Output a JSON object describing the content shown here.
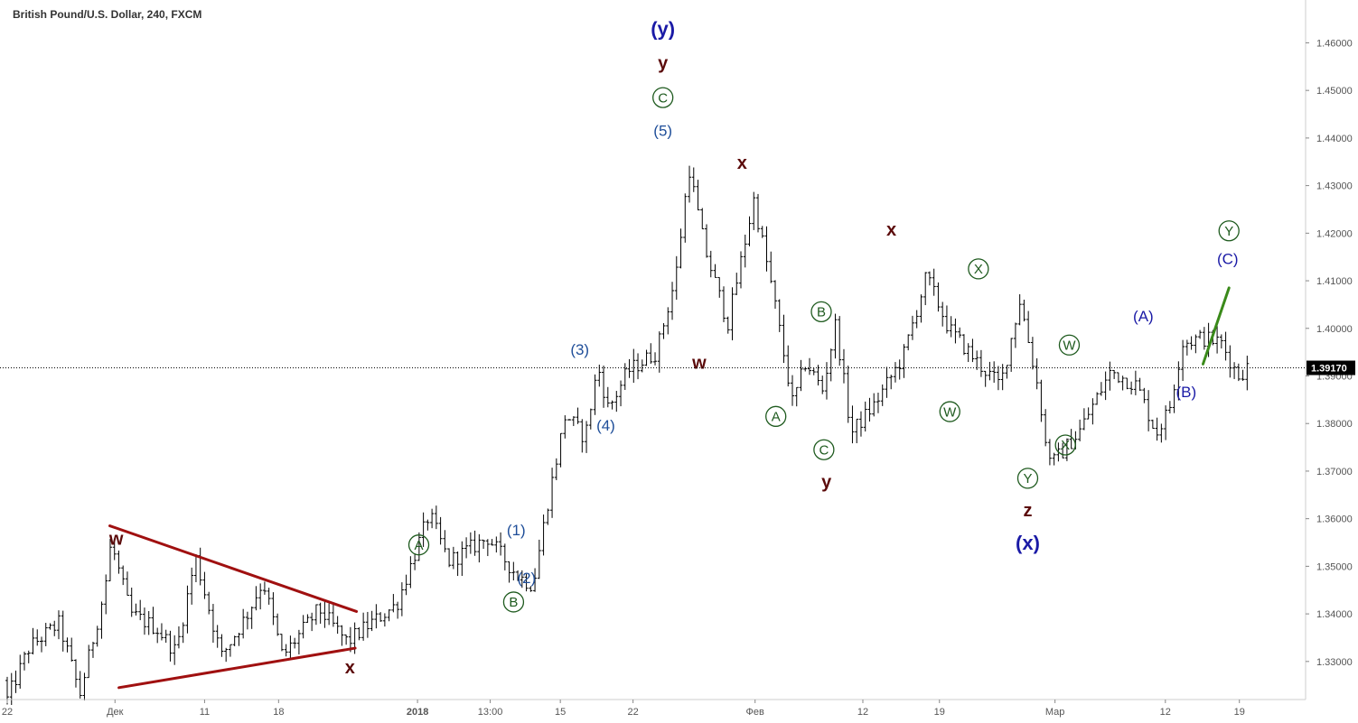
{
  "title": "British Pound/U.S. Dollar, 240, FXCM",
  "chart_data": {
    "type": "ohlc",
    "title": "British Pound/U.S. Dollar, 240, FXCM",
    "ylim": [
      1.322,
      1.469
    ],
    "y_ticks": [
      {
        "value": 1.33,
        "label": "1.33000"
      },
      {
        "value": 1.34,
        "label": "1.34000"
      },
      {
        "value": 1.35,
        "label": "1.35000"
      },
      {
        "value": 1.36,
        "label": "1.36000"
      },
      {
        "value": 1.37,
        "label": "1.37000"
      },
      {
        "value": 1.38,
        "label": "1.38000"
      },
      {
        "value": 1.39,
        "label": "1.39000"
      },
      {
        "value": 1.4,
        "label": "1.40000"
      },
      {
        "value": 1.41,
        "label": "1.41000"
      },
      {
        "value": 1.42,
        "label": "1.42000"
      },
      {
        "value": 1.43,
        "label": "1.43000"
      },
      {
        "value": 1.44,
        "label": "1.44000"
      },
      {
        "value": 1.45,
        "label": "1.45000"
      },
      {
        "value": 1.46,
        "label": "1.46000"
      }
    ],
    "x_ticks": [
      {
        "label": "22",
        "pos": 0
      },
      {
        "label": "Дек",
        "pos": 0.083
      },
      {
        "label": "11",
        "pos": 0.152
      },
      {
        "label": "18",
        "pos": 0.209
      },
      {
        "label": "2018",
        "pos": 0.316
      },
      {
        "label": "13:00",
        "pos": 0.372
      },
      {
        "label": "15",
        "pos": 0.426
      },
      {
        "label": "22",
        "pos": 0.482
      },
      {
        "label": "Фев",
        "pos": 0.576
      },
      {
        "label": "12",
        "pos": 0.659
      },
      {
        "label": "19",
        "pos": 0.718
      },
      {
        "label": "Мар",
        "pos": 0.807
      },
      {
        "label": "12",
        "pos": 0.892
      },
      {
        "label": "19",
        "pos": 0.949
      }
    ],
    "current_price": {
      "value": 1.3917,
      "label": "1.39170"
    },
    "price_anchors": [
      [
        0.0,
        1.322
      ],
      [
        0.017,
        1.333
      ],
      [
        0.04,
        1.338
      ],
      [
        0.056,
        1.323
      ],
      [
        0.075,
        1.345
      ],
      [
        0.08,
        1.355
      ],
      [
        0.095,
        1.34
      ],
      [
        0.115,
        1.337
      ],
      [
        0.13,
        1.332
      ],
      [
        0.145,
        1.352
      ],
      [
        0.165,
        1.331
      ],
      [
        0.185,
        1.34
      ],
      [
        0.197,
        1.347
      ],
      [
        0.212,
        1.331
      ],
      [
        0.24,
        1.341
      ],
      [
        0.262,
        1.334
      ],
      [
        0.275,
        1.337
      ],
      [
        0.3,
        1.342
      ],
      [
        0.325,
        1.361
      ],
      [
        0.34,
        1.351
      ],
      [
        0.37,
        1.356
      ],
      [
        0.393,
        1.348
      ],
      [
        0.405,
        1.346
      ],
      [
        0.416,
        1.363
      ],
      [
        0.43,
        1.382
      ],
      [
        0.445,
        1.377
      ],
      [
        0.455,
        1.392
      ],
      [
        0.463,
        1.383
      ],
      [
        0.478,
        1.391
      ],
      [
        0.5,
        1.395
      ],
      [
        0.515,
        1.411
      ],
      [
        0.525,
        1.434
      ],
      [
        0.537,
        1.417
      ],
      [
        0.555,
        1.401
      ],
      [
        0.575,
        1.427
      ],
      [
        0.59,
        1.407
      ],
      [
        0.605,
        1.384
      ],
      [
        0.615,
        1.393
      ],
      [
        0.628,
        1.387
      ],
      [
        0.638,
        1.401
      ],
      [
        0.65,
        1.378
      ],
      [
        0.668,
        1.384
      ],
      [
        0.69,
        1.394
      ],
      [
        0.708,
        1.411
      ],
      [
        0.725,
        1.4
      ],
      [
        0.75,
        1.392
      ],
      [
        0.765,
        1.388
      ],
      [
        0.78,
        1.406
      ],
      [
        0.795,
        1.386
      ],
      [
        0.8,
        1.375
      ],
      [
        0.806,
        1.372
      ],
      [
        0.825,
        1.378
      ],
      [
        0.85,
        1.391
      ],
      [
        0.87,
        1.388
      ],
      [
        0.885,
        1.378
      ],
      [
        0.895,
        1.383
      ],
      [
        0.905,
        1.397
      ],
      [
        0.92,
        1.398
      ],
      [
        0.935,
        1.397
      ],
      [
        0.948,
        1.39
      ],
      [
        0.955,
        1.3917
      ]
    ]
  },
  "wave_labels": [
    {
      "text": "(y)",
      "color": "#1a1aa6",
      "x": 0.505,
      "y": 1.4615,
      "size": 22,
      "bold": true
    },
    {
      "text": "y",
      "color": "#5b0a0a",
      "x": 0.505,
      "y": 1.4545,
      "size": 20,
      "bold": true
    },
    {
      "text": "C",
      "circled": true,
      "color": "#1e5a1e",
      "x": 0.505,
      "y": 1.4475,
      "size": 15
    },
    {
      "text": "(5)",
      "color": "#1f4e99",
      "x": 0.505,
      "y": 1.4405,
      "size": 17
    },
    {
      "text": "x",
      "color": "#5b0a0a",
      "x": 0.566,
      "y": 1.4335,
      "size": 20,
      "bold": true
    },
    {
      "text": "w",
      "color": "#5b0a0a",
      "x": 0.533,
      "y": 1.3915,
      "size": 20,
      "bold": true
    },
    {
      "text": "(3)",
      "color": "#1f4e99",
      "x": 0.441,
      "y": 1.3945,
      "size": 17
    },
    {
      "text": "(4)",
      "color": "#1f4e99",
      "x": 0.461,
      "y": 1.3785,
      "size": 17
    },
    {
      "text": "(1)",
      "color": "#1f4e99",
      "x": 0.392,
      "y": 1.3565,
      "size": 17
    },
    {
      "text": "(2)",
      "color": "#1f4e99",
      "x": 0.4,
      "y": 1.3465,
      "size": 17
    },
    {
      "text": "A",
      "circled": true,
      "color": "#1e5a1e",
      "x": 0.317,
      "y": 1.3535,
      "size": 15
    },
    {
      "text": "B",
      "circled": true,
      "color": "#1e5a1e",
      "x": 0.39,
      "y": 1.3415,
      "size": 15
    },
    {
      "text": "w",
      "color": "#5b0a0a",
      "x": 0.084,
      "y": 1.3545,
      "size": 20,
      "bold": true
    },
    {
      "text": "x",
      "color": "#5b0a0a",
      "x": 0.264,
      "y": 1.3275,
      "size": 20,
      "bold": true
    },
    {
      "text": "A",
      "circled": true,
      "color": "#1e5a1e",
      "x": 0.592,
      "y": 1.3805,
      "size": 15
    },
    {
      "text": "B",
      "circled": true,
      "color": "#1e5a1e",
      "x": 0.627,
      "y": 1.4025,
      "size": 15
    },
    {
      "text": "C",
      "circled": true,
      "color": "#1e5a1e",
      "x": 0.629,
      "y": 1.3735,
      "size": 15
    },
    {
      "text": "y",
      "color": "#5b0a0a",
      "x": 0.631,
      "y": 1.3665,
      "size": 20,
      "bold": true
    },
    {
      "text": "x",
      "color": "#5b0a0a",
      "x": 0.681,
      "y": 1.4195,
      "size": 20,
      "bold": true
    },
    {
      "text": "W",
      "circled": true,
      "color": "#1e5a1e",
      "x": 0.726,
      "y": 1.3815,
      "size": 15
    },
    {
      "text": "X",
      "circled": true,
      "color": "#1e5a1e",
      "x": 0.748,
      "y": 1.4115,
      "size": 15
    },
    {
      "text": "Y",
      "circled": true,
      "color": "#1e5a1e",
      "x": 0.786,
      "y": 1.3675,
      "size": 15
    },
    {
      "text": "z",
      "color": "#5b0a0a",
      "x": 0.786,
      "y": 1.3605,
      "size": 20,
      "bold": true
    },
    {
      "text": "(x)",
      "color": "#1a1aa6",
      "x": 0.786,
      "y": 1.3535,
      "size": 22,
      "bold": true
    },
    {
      "text": "W",
      "circled": true,
      "color": "#1e5a1e",
      "x": 0.818,
      "y": 1.3955,
      "size": 15
    },
    {
      "text": "X",
      "circled": true,
      "color": "#1e5a1e",
      "x": 0.815,
      "y": 1.3745,
      "size": 15
    },
    {
      "text": "(A)",
      "color": "#1a1aa6",
      "x": 0.875,
      "y": 1.4015,
      "size": 17
    },
    {
      "text": "(B)",
      "color": "#1a1aa6",
      "x": 0.908,
      "y": 1.3855,
      "size": 17
    },
    {
      "text": "Y",
      "circled": true,
      "color": "#1e5a1e",
      "x": 0.941,
      "y": 1.4195,
      "size": 15
    },
    {
      "text": "(C)",
      "color": "#1a1aa6",
      "x": 0.94,
      "y": 1.4135,
      "size": 17
    }
  ],
  "trendlines": [
    {
      "name": "triangle-upper-line",
      "color": "#a01010",
      "width": 3,
      "x1": 0.079,
      "y1": 1.3585,
      "x2": 0.269,
      "y2": 1.3405
    },
    {
      "name": "triangle-lower-line",
      "color": "#a01010",
      "width": 3,
      "x1": 0.086,
      "y1": 1.3245,
      "x2": 0.268,
      "y2": 1.3328
    },
    {
      "name": "projection-line",
      "color": "#3a8a1a",
      "width": 3,
      "x1": 0.921,
      "y1": 1.3925,
      "x2": 0.941,
      "y2": 1.4085
    }
  ],
  "colors": {
    "axis": "#cccccc",
    "bars": "#000000",
    "price_line": "#000000",
    "price_tag_bg": "#000000",
    "price_tag_text": "#ffffff",
    "tick_label": "#555555"
  }
}
